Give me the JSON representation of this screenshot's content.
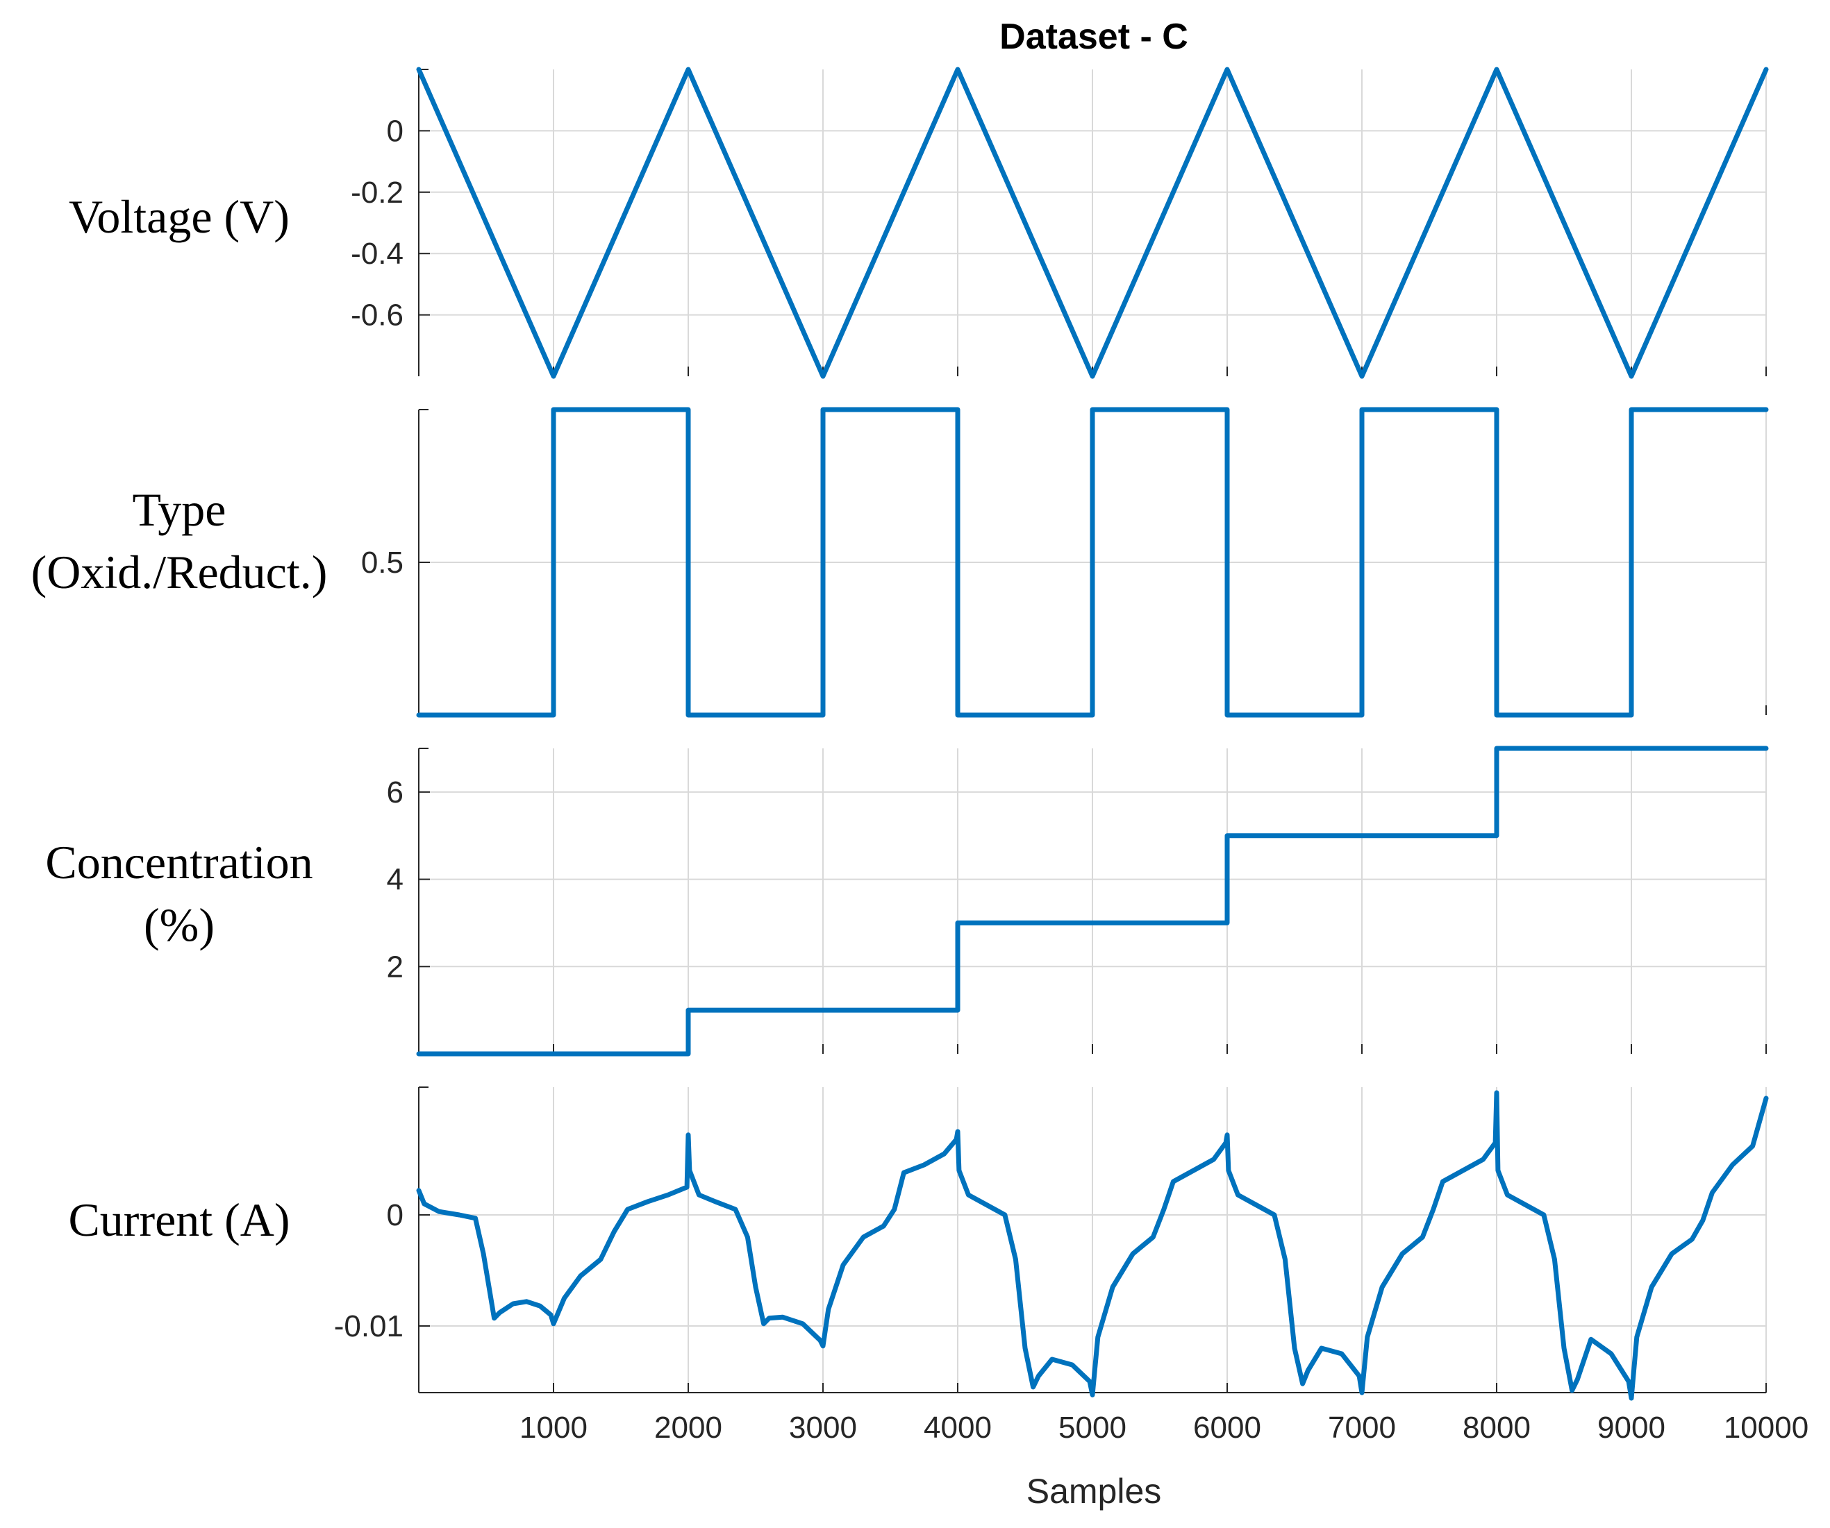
{
  "chart_data": {
    "type": "line",
    "title": "Dataset - C",
    "xlabel": "Samples",
    "x_ticks": [
      1000,
      2000,
      3000,
      4000,
      5000,
      6000,
      7000,
      8000,
      9000,
      10000
    ],
    "xlim": [
      0,
      10000
    ],
    "grid": true,
    "color": "#0072BD",
    "subplots": [
      {
        "id": "voltage",
        "ylabel_lines": [
          "Voltage (V)"
        ],
        "ylim": [
          -0.8,
          0.2
        ],
        "y_ticks": [
          0,
          -0.2,
          -0.4,
          -0.6
        ],
        "y_tick_labels": [
          "0",
          "-0.2",
          "-0.4",
          "-0.6"
        ],
        "x": [
          0,
          1000,
          2000,
          3000,
          4000,
          5000,
          6000,
          7000,
          8000,
          9000,
          10000
        ],
        "y": [
          0.2,
          -0.8,
          0.2,
          -0.8,
          0.2,
          -0.8,
          0.2,
          -0.8,
          0.2,
          -0.8,
          0.2
        ]
      },
      {
        "id": "type",
        "ylabel_lines": [
          "Type",
          "(Oxid./Reduct.)"
        ],
        "ylim": [
          0,
          1
        ],
        "y_ticks": [
          0.5
        ],
        "y_tick_labels": [
          "0.5"
        ],
        "x": [
          0,
          1000,
          1000,
          2000,
          2000,
          3000,
          3000,
          4000,
          4000,
          5000,
          5000,
          6000,
          6000,
          7000,
          7000,
          8000,
          8000,
          9000,
          9000,
          10000
        ],
        "y": [
          0,
          0,
          1,
          1,
          0,
          0,
          1,
          1,
          0,
          0,
          1,
          1,
          0,
          0,
          1,
          1,
          0,
          0,
          1,
          1
        ]
      },
      {
        "id": "concentration",
        "ylabel_lines": [
          "Concentration",
          "(%)"
        ],
        "ylim": [
          0,
          7
        ],
        "y_ticks": [
          6,
          4,
          2
        ],
        "y_tick_labels": [
          "6",
          "4",
          "2"
        ],
        "x": [
          0,
          2000,
          2000,
          4000,
          4000,
          6000,
          6000,
          8000,
          8000,
          10000
        ],
        "y": [
          0,
          0,
          1,
          1,
          3,
          3,
          5,
          5,
          7,
          7
        ]
      },
      {
        "id": "current",
        "ylabel_lines": [
          "Current (A)"
        ],
        "ylim": [
          -0.016,
          0.0115
        ],
        "y_ticks": [
          0,
          -0.01
        ],
        "y_tick_labels": [
          "0",
          "-0.01"
        ],
        "x": [
          0,
          40,
          150,
          300,
          420,
          480,
          560,
          600,
          700,
          800,
          900,
          980,
          1000,
          1080,
          1200,
          1350,
          1450,
          1550,
          1700,
          1850,
          1990,
          2000,
          2010,
          2080,
          2200,
          2350,
          2440,
          2500,
          2560,
          2600,
          2700,
          2850,
          2980,
          3000,
          3040,
          3150,
          3300,
          3450,
          3530,
          3600,
          3750,
          3900,
          3990,
          4000,
          4010,
          4080,
          4200,
          4350,
          4430,
          4500,
          4560,
          4600,
          4700,
          4850,
          4980,
          5000,
          5040,
          5150,
          5300,
          5450,
          5530,
          5600,
          5750,
          5900,
          5990,
          6000,
          6010,
          6080,
          6200,
          6350,
          6430,
          6500,
          6560,
          6600,
          6700,
          6850,
          6980,
          7000,
          7040,
          7150,
          7300,
          7450,
          7530,
          7600,
          7750,
          7900,
          7990,
          8000,
          8010,
          8080,
          8200,
          8350,
          8430,
          8500,
          8560,
          8600,
          8700,
          8850,
          8980,
          9000,
          9040,
          9150,
          9300,
          9450,
          9530,
          9600,
          9750,
          9900,
          10000
        ],
        "y": [
          0.0022,
          0.001,
          0.0003,
          0.0,
          -0.0003,
          -0.0035,
          -0.0093,
          -0.0088,
          -0.008,
          -0.0078,
          -0.0082,
          -0.009,
          -0.0098,
          -0.0075,
          -0.0055,
          -0.004,
          -0.0015,
          0.0005,
          0.0012,
          0.0018,
          0.0025,
          0.0072,
          0.004,
          0.0018,
          0.0012,
          0.0005,
          -0.002,
          -0.0065,
          -0.0098,
          -0.0093,
          -0.0092,
          -0.0098,
          -0.0113,
          -0.0118,
          -0.0085,
          -0.0045,
          -0.002,
          -0.001,
          0.0005,
          0.0038,
          0.0045,
          0.0055,
          0.0068,
          0.0075,
          0.004,
          0.0018,
          0.001,
          0.0,
          -0.004,
          -0.012,
          -0.0155,
          -0.0145,
          -0.013,
          -0.0135,
          -0.015,
          -0.0162,
          -0.011,
          -0.0065,
          -0.0035,
          -0.002,
          0.0005,
          0.003,
          0.004,
          0.005,
          0.0065,
          0.0072,
          0.004,
          0.0018,
          0.001,
          0.0,
          -0.004,
          -0.012,
          -0.0152,
          -0.014,
          -0.012,
          -0.0125,
          -0.0145,
          -0.016,
          -0.011,
          -0.0065,
          -0.0035,
          -0.002,
          0.0005,
          0.003,
          0.004,
          0.005,
          0.0065,
          0.011,
          0.004,
          0.0018,
          0.001,
          0.0,
          -0.004,
          -0.012,
          -0.0158,
          -0.0148,
          -0.0112,
          -0.0125,
          -0.015,
          -0.0165,
          -0.011,
          -0.0065,
          -0.0035,
          -0.0022,
          -0.0005,
          0.002,
          0.0045,
          0.0062,
          0.0105
        ]
      }
    ]
  }
}
